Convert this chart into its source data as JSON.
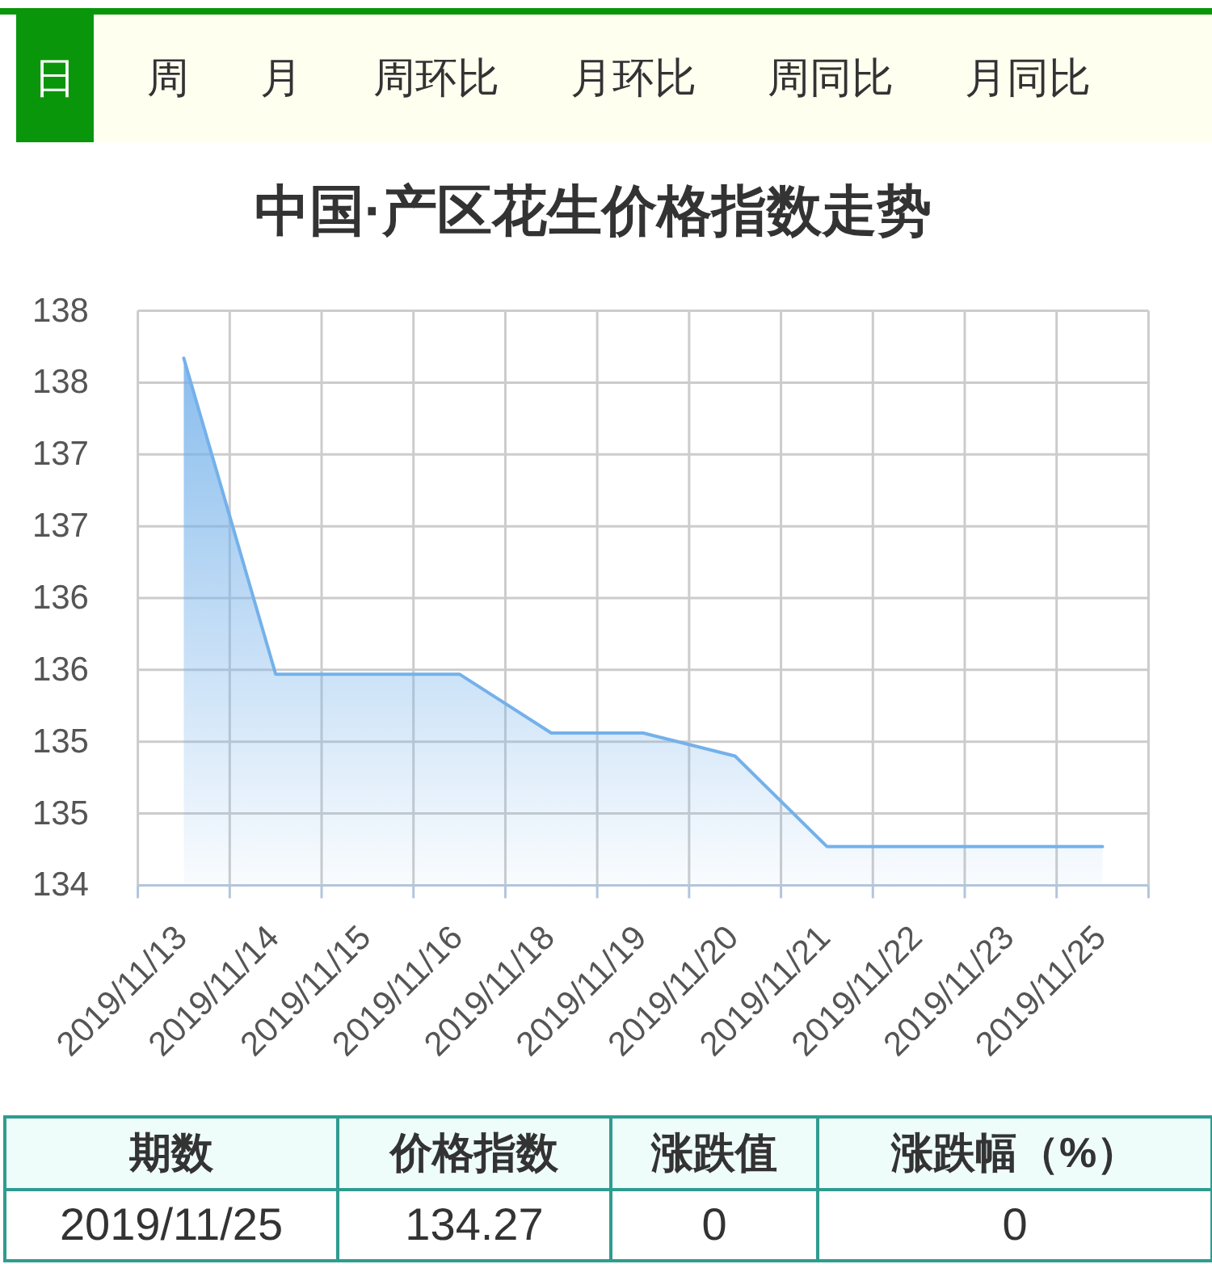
{
  "chart_data": {
    "type": "area",
    "title": "中国·产区花生价格指数走势",
    "categories": [
      "2019/11/13",
      "2019/11/14",
      "2019/11/15",
      "2019/11/16",
      "2019/11/18",
      "2019/11/19",
      "2019/11/20",
      "2019/11/21",
      "2019/11/22",
      "2019/11/23",
      "2019/11/25"
    ],
    "series": [
      {
        "color": "#74b1ea",
        "values": [
          137.67,
          135.47,
          135.47,
          135.47,
          135.06,
          135.06,
          134.9,
          134.27,
          134.27,
          134.27,
          134.27
        ]
      }
    ],
    "ylim": [
      134,
      138
    ],
    "yticks": [
      134,
      {
        "value": 134.5,
        "label": "135"
      },
      135,
      {
        "value": 135.5,
        "label": "136"
      },
      136,
      {
        "value": 136.5,
        "label": "137"
      },
      137,
      {
        "value": 137.5,
        "label": "138"
      },
      138
    ],
    "grid": true,
    "annotations": [
      "日",
      "周",
      "月",
      "周环比",
      "月环比",
      "周同比",
      "月同比",
      "期数",
      "价格指数",
      "涨跌值",
      "涨跌幅（%）",
      "2019/11/25",
      "134.27",
      "0",
      "0"
    ]
  }
}
